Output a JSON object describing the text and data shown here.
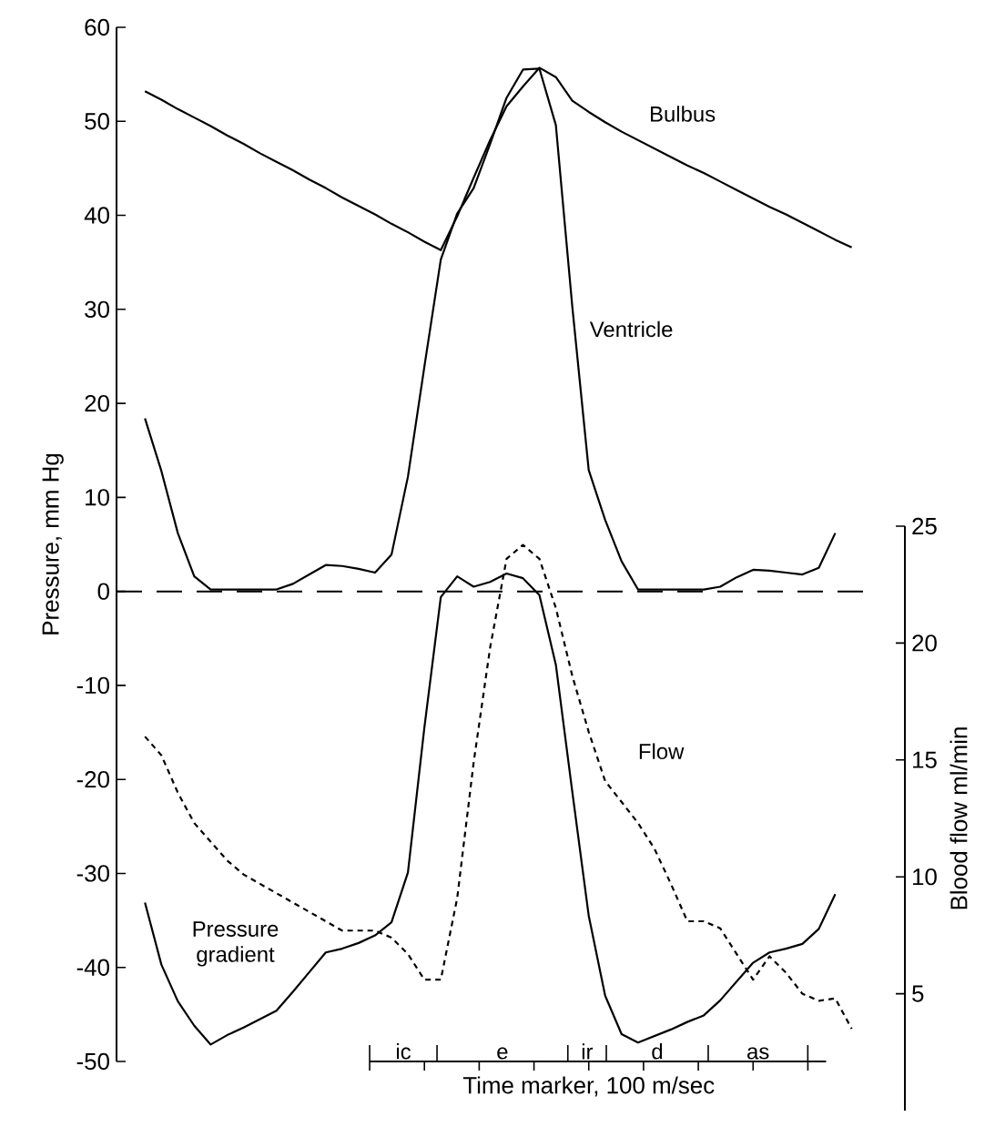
{
  "chart_data": {
    "type": "line",
    "xlabel": "Time marker, 100 m/sec",
    "ylabel": "Pressure, mm Hg",
    "y2label": "Blood flow  ml/min",
    "categories": [
      null,
      null,
      null,
      null,
      null,
      null,
      null,
      null,
      null,
      null,
      null,
      null,
      null,
      null,
      null,
      null,
      null,
      null,
      null,
      null,
      null,
      null,
      null,
      null,
      null,
      null,
      null,
      null,
      null,
      null,
      null,
      null,
      null,
      null,
      null,
      null,
      null,
      null,
      null,
      null,
      null,
      null,
      null,
      null
    ],
    "ylim": [
      -50,
      60
    ],
    "yticks": [
      -50,
      -40,
      -30,
      -20,
      -10,
      0,
      10,
      20,
      30,
      40,
      50,
      60
    ],
    "y2lim": [
      0,
      25
    ],
    "y2ticks": [
      5,
      10,
      15,
      20,
      25
    ],
    "grid": false,
    "legend": false,
    "annotations": [
      "ic",
      "e",
      "ir",
      "d",
      "as"
    ],
    "ref_lines": [
      {
        "axis": "y",
        "value": 0,
        "line_style": "dashed",
        "color": "#000000"
      }
    ],
    "series": [
      {
        "name": "Bulbus",
        "color": "#000000",
        "line_style": "solid",
        "values": [
          53.2,
          52.3,
          51.3,
          50.4,
          49.5,
          48.5,
          47.6,
          46.6,
          45.7,
          44.8,
          43.8,
          42.9,
          41.9,
          41.0,
          40.1,
          39.1,
          38.2,
          37.2,
          36.3,
          39.9,
          44.0,
          48.0,
          51.6,
          53.7,
          55.7,
          54.7,
          52.2,
          51.0,
          49.9,
          48.9,
          48.0,
          47.1,
          46.2,
          45.3,
          44.5,
          43.6,
          42.7,
          41.8,
          40.9,
          40.1,
          39.2,
          38.3,
          37.4,
          36.6
        ]
      },
      {
        "name": "Ventricle",
        "color": "#000000",
        "line_style": "solid",
        "values": [
          18.4,
          12.8,
          6.2,
          1.6,
          0.2,
          0.2,
          0.2,
          0.2,
          0.2,
          0.8,
          1.8,
          2.8,
          2.7,
          2.4,
          2.0,
          3.9,
          12.2,
          23.9,
          35.3,
          40.2,
          42.9,
          47.6,
          52.5,
          55.5,
          55.6,
          49.6,
          30.3,
          12.9,
          7.6,
          3.2,
          0.2,
          0.2,
          0.2,
          0.2,
          0.2,
          0.5,
          1.5,
          2.3,
          2.2,
          2.0,
          1.8,
          2.5,
          6.2,
          null
        ]
      },
      {
        "name": "Pressure gradient",
        "color": "#000000",
        "line_style": "solid",
        "values": [
          -33.1,
          -39.7,
          -43.6,
          -46.2,
          -48.2,
          -47.2,
          -46.4,
          -45.5,
          -44.6,
          -42.6,
          -40.5,
          -38.4,
          -38.0,
          -37.4,
          -36.6,
          -35.2,
          -29.9,
          -14.5,
          -0.6,
          1.6,
          0.5,
          1.0,
          1.9,
          1.4,
          -0.4,
          -7.8,
          -21.3,
          -34.5,
          -43.0,
          -47.1,
          -48.0,
          -47.3,
          -46.6,
          -45.8,
          -45.1,
          -43.5,
          -41.5,
          -39.5,
          -38.4,
          -38.0,
          -37.5,
          -35.9,
          -32.2,
          null
        ]
      },
      {
        "name": "Flow",
        "color": "#000000",
        "line_style": "dashed",
        "axis": "y2",
        "values": [
          16.0,
          15.2,
          13.6,
          12.3,
          11.5,
          10.7,
          10.1,
          9.7,
          9.3,
          8.9,
          8.5,
          8.1,
          7.7,
          7.7,
          7.7,
          7.4,
          6.7,
          5.6,
          5.6,
          9.1,
          14.9,
          19.8,
          23.6,
          24.2,
          23.6,
          21.5,
          18.6,
          16.2,
          14.1,
          13.2,
          12.3,
          11.2,
          9.7,
          8.1,
          8.1,
          7.8,
          6.7,
          5.6,
          6.6,
          5.9,
          5.0,
          4.7,
          4.8,
          3.5
        ]
      }
    ]
  }
}
